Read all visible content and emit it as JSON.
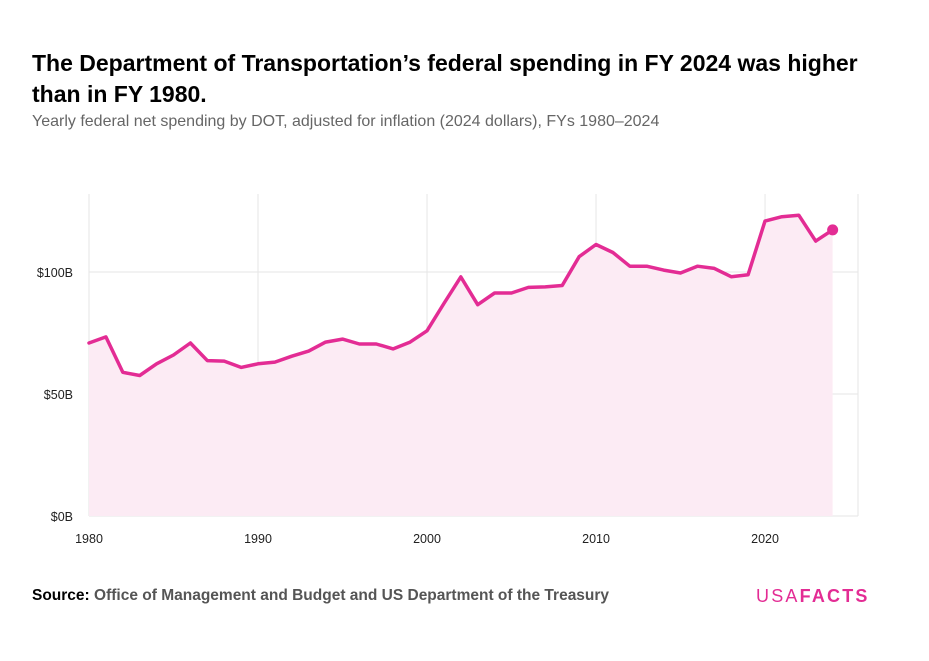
{
  "title": "The Department of Transportation’s federal spending in FY 2024 was higher than in FY 1980.",
  "subtitle": "Yearly federal net spending by DOT, adjusted for inflation (2024 dollars), FYs 1980–2024",
  "source_label": "Source:",
  "source_text": "Office of Management and Budget and US Department of the Treasury",
  "logo": {
    "usa": "USA",
    "facts": "FACTS"
  },
  "colors": {
    "line": "#e32c94",
    "area": "#fcebf4",
    "grid": "#e6e6e6"
  },
  "chart_data": {
    "type": "area",
    "xlim": [
      1980,
      2025.5
    ],
    "ylim": [
      0,
      132
    ],
    "x_ticks": [
      1980,
      1990,
      2000,
      2010,
      2020
    ],
    "x_tick_labels": [
      "1980",
      "1990",
      "2000",
      "2010",
      "2020"
    ],
    "y_ticks": [
      0,
      50,
      100
    ],
    "y_tick_labels": [
      "$0B",
      "$50B",
      "$100B"
    ],
    "grid": true,
    "highlight_last_point": true,
    "x": [
      1980,
      1981,
      1982,
      1983,
      1984,
      1985,
      1986,
      1987,
      1988,
      1989,
      1990,
      1991,
      1992,
      1993,
      1994,
      1995,
      1996,
      1997,
      1998,
      1999,
      2000,
      2001,
      2002,
      2003,
      2004,
      2005,
      2006,
      2007,
      2008,
      2009,
      2010,
      2011,
      2012,
      2013,
      2014,
      2015,
      2016,
      2017,
      2018,
      2019,
      2020,
      2021,
      2022,
      2023,
      2024
    ],
    "values": [
      70.9,
      73.4,
      58.9,
      57.6,
      62.4,
      66.0,
      70.9,
      63.7,
      63.5,
      60.9,
      62.4,
      63.1,
      65.5,
      67.6,
      71.3,
      72.5,
      70.5,
      70.5,
      68.5,
      71.3,
      75.9,
      87.1,
      98.0,
      86.6,
      91.4,
      91.4,
      93.7,
      93.9,
      94.5,
      106.3,
      111.3,
      108.0,
      102.4,
      102.4,
      100.8,
      99.6,
      102.4,
      101.5,
      98.1,
      98.9,
      120.9,
      122.7,
      123.3,
      112.7,
      117.3
    ]
  }
}
